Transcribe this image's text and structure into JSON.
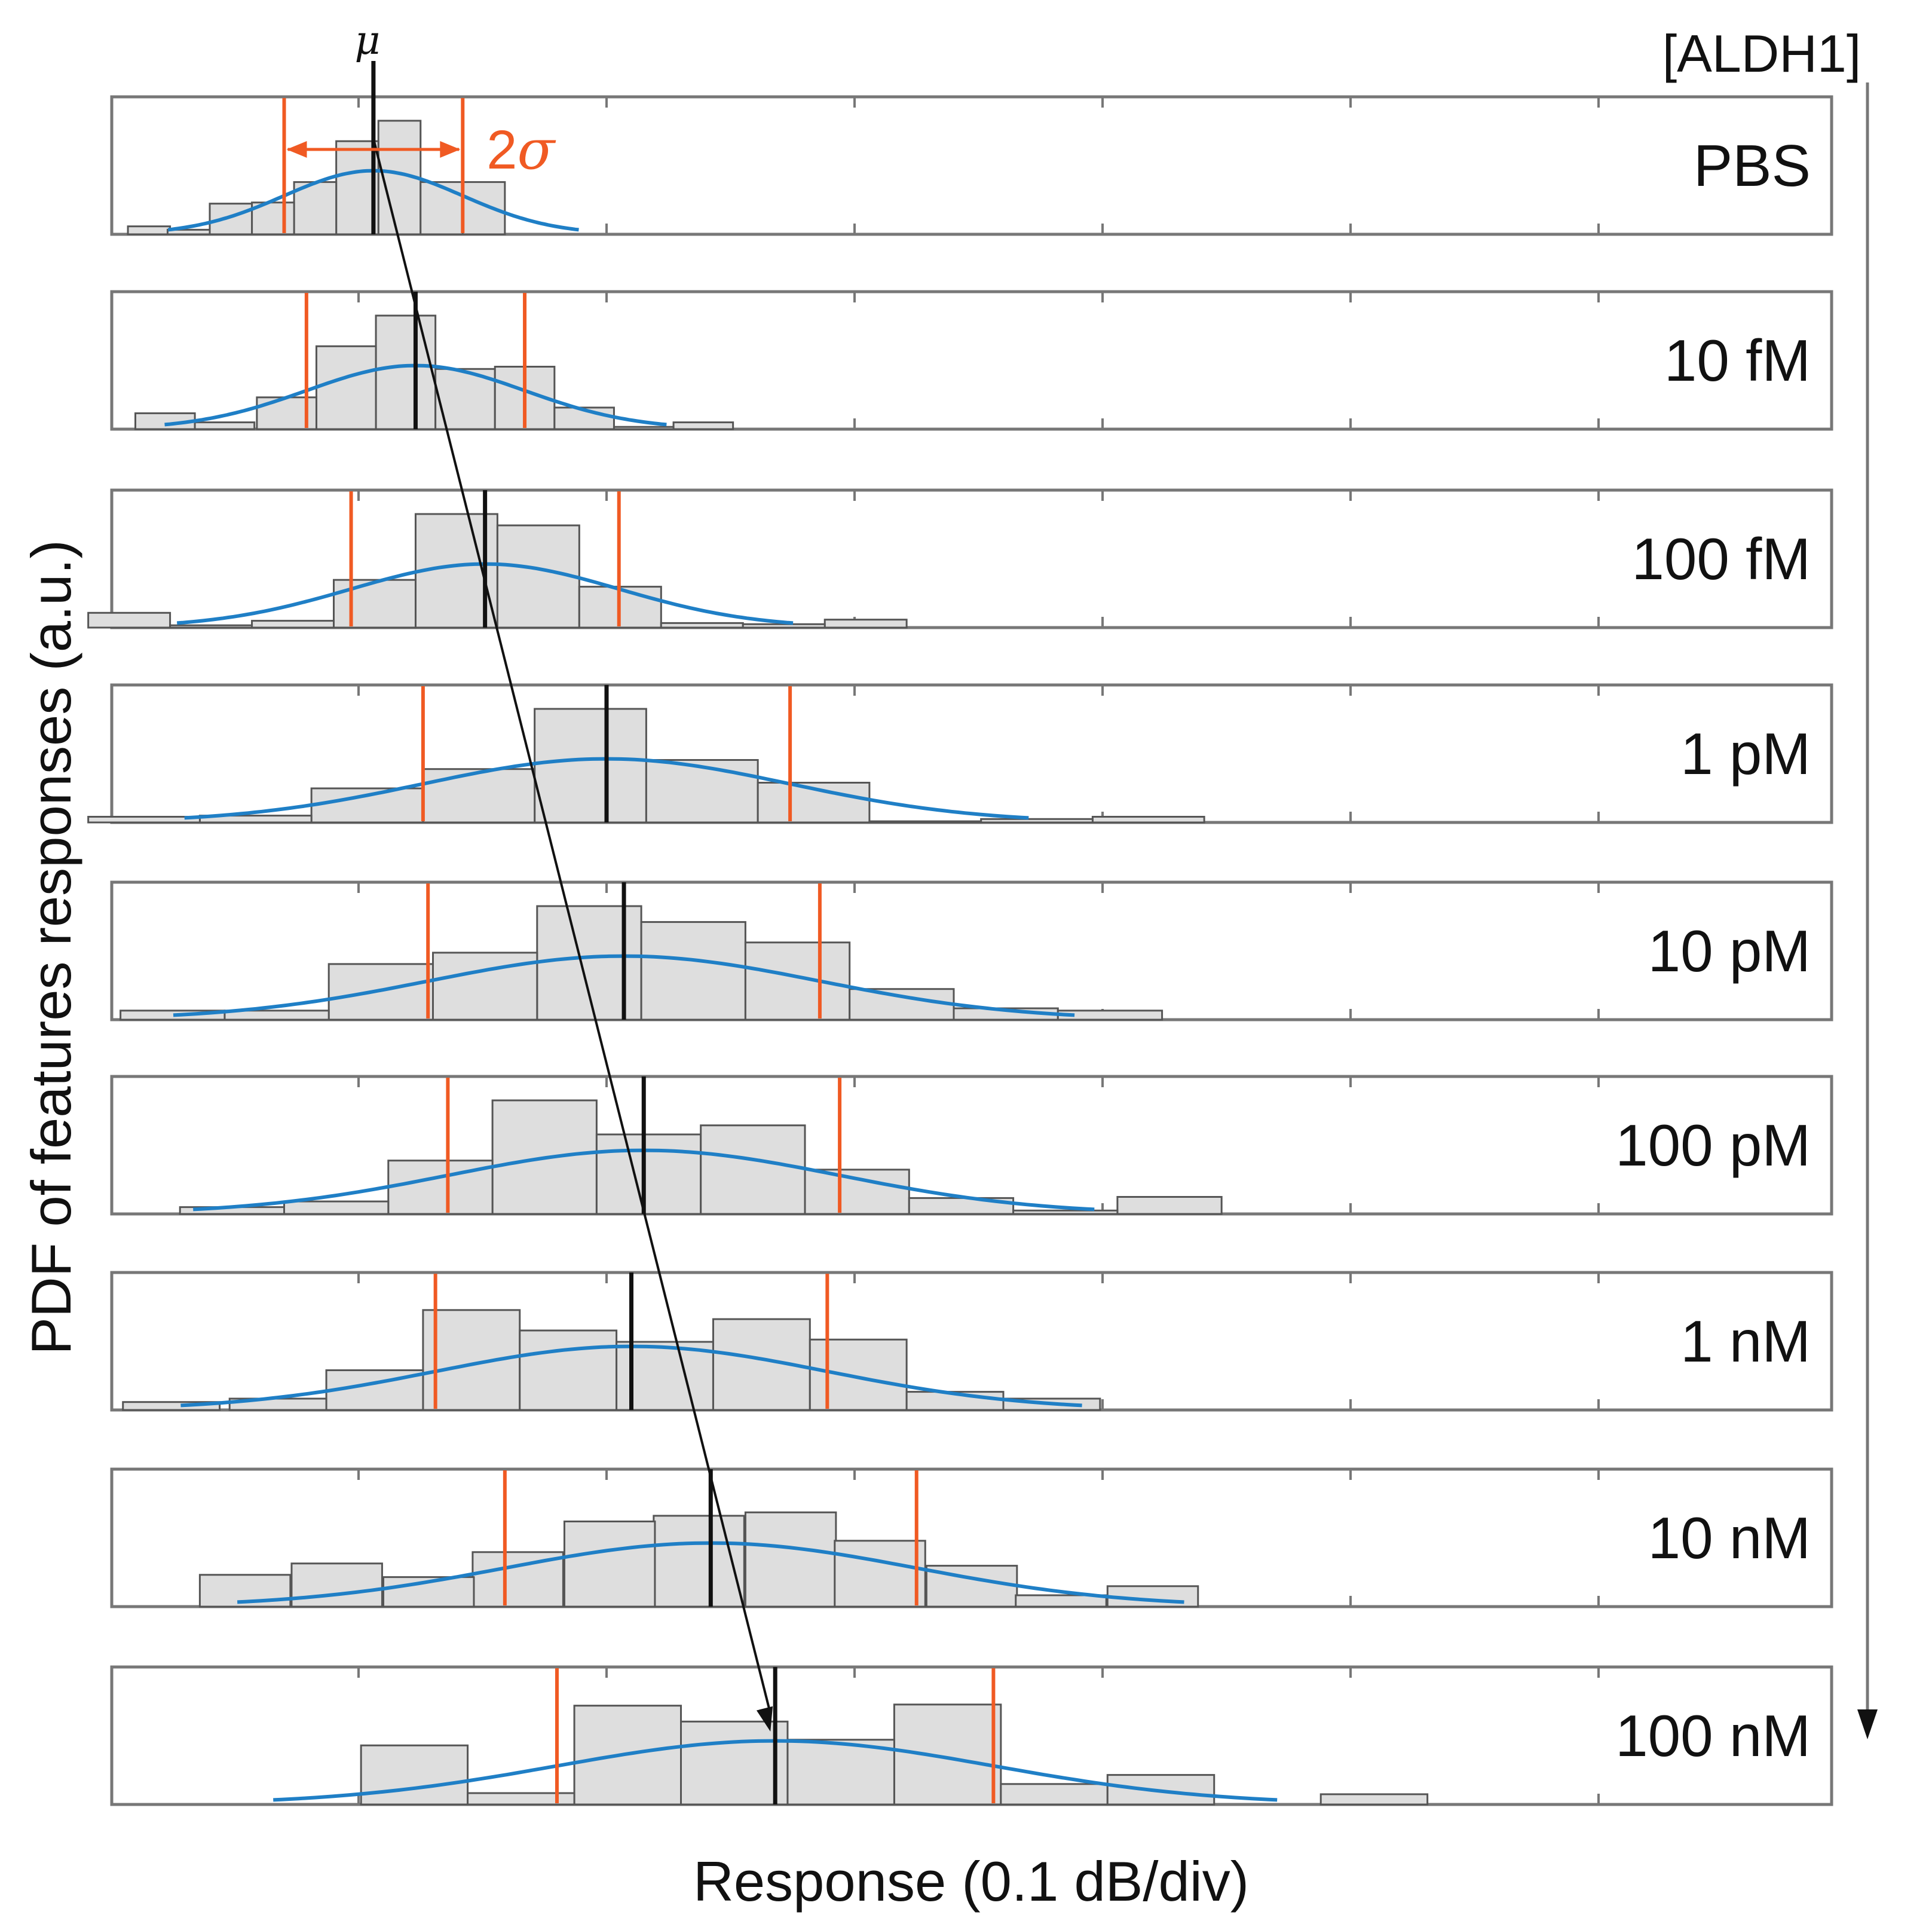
{
  "chart_data": {
    "type": "histogram-stack",
    "xlabel": "Response (0.1 dB/div)",
    "ylabel": "PDF of features responses (a.u.)",
    "axis_label": "[ALDH1]",
    "annotations": {
      "mu": "μ",
      "two_sigma": "2σ",
      "two_prefix": "2",
      "sigma_symbol": "σ"
    },
    "x_units": "div",
    "xlim": [
      -1,
      6
    ],
    "xticks": [
      0,
      1,
      2,
      3,
      4,
      5
    ],
    "colors": {
      "hist_fill": "#dedede",
      "hist_edge": "#555555",
      "fit": "#1f7fc6",
      "sigma": "#f05a23",
      "mean": "#111111",
      "frame": "#777777",
      "trend": "#111111"
    },
    "panels": [
      {
        "label": "PBS",
        "mean": 0.06,
        "sigma": 0.36,
        "bin_width": 0.17,
        "bins": [
          {
            "start": 0.08,
            "height": 1.0
          },
          {
            "start": -0.09,
            "height": 0.82
          },
          {
            "start": 0.25,
            "height": 0.46
          },
          {
            "start": -0.26,
            "height": 0.46
          },
          {
            "start": 0.42,
            "height": 0.46
          },
          {
            "start": -0.43,
            "height": 0.28
          },
          {
            "start": -0.6,
            "height": 0.27
          },
          {
            "start": -0.93,
            "height": 0.07
          },
          {
            "start": -0.77,
            "height": 0.04
          }
        ]
      },
      {
        "label": "10 fM",
        "mean": 0.23,
        "sigma": 0.44,
        "bin_width": 0.24,
        "bins": [
          {
            "start": 0.07,
            "height": 1.0
          },
          {
            "start": -0.17,
            "height": 0.73
          },
          {
            "start": 0.31,
            "height": 0.53
          },
          {
            "start": 0.55,
            "height": 0.55
          },
          {
            "start": -0.41,
            "height": 0.28
          },
          {
            "start": 0.79,
            "height": 0.19
          },
          {
            "start": -0.9,
            "height": 0.14
          },
          {
            "start": -0.66,
            "height": 0.06
          },
          {
            "start": 1.27,
            "height": 0.06
          },
          {
            "start": 1.03,
            "height": 0.02
          }
        ]
      },
      {
        "label": "100 fM",
        "mean": 0.51,
        "sigma": 0.54,
        "bin_width": 0.33,
        "bins": [
          {
            "start": 0.23,
            "height": 1.0
          },
          {
            "start": 0.56,
            "height": 0.9
          },
          {
            "start": -0.1,
            "height": 0.42
          },
          {
            "start": 0.89,
            "height": 0.36
          },
          {
            "start": -1.09,
            "height": 0.13
          },
          {
            "start": 1.88,
            "height": 0.07
          },
          {
            "start": 1.22,
            "height": 0.04
          },
          {
            "start": -0.43,
            "height": 0.06
          },
          {
            "start": -0.76,
            "height": 0.02
          },
          {
            "start": 1.55,
            "height": 0.03
          }
        ]
      },
      {
        "label": "1 pM",
        "mean": 1.0,
        "sigma": 0.74,
        "bin_width": 0.45,
        "bins": [
          {
            "start": 0.71,
            "height": 1.0
          },
          {
            "start": 0.26,
            "height": 0.47
          },
          {
            "start": 1.16,
            "height": 0.55
          },
          {
            "start": 1.61,
            "height": 0.35
          },
          {
            "start": -0.19,
            "height": 0.3
          },
          {
            "start": -0.64,
            "height": 0.06
          },
          {
            "start": -1.09,
            "height": 0.05
          },
          {
            "start": 2.96,
            "height": 0.05
          },
          {
            "start": 2.51,
            "height": 0.03
          },
          {
            "start": 2.06,
            "height": 0.01
          }
        ]
      },
      {
        "label": "10 pM",
        "mean": 1.07,
        "sigma": 0.79,
        "bin_width": 0.42,
        "bins": [
          {
            "start": 0.72,
            "height": 1.0
          },
          {
            "start": 1.14,
            "height": 0.86
          },
          {
            "start": 0.3,
            "height": 0.59
          },
          {
            "start": -0.12,
            "height": 0.49
          },
          {
            "start": 1.56,
            "height": 0.68
          },
          {
            "start": 1.98,
            "height": 0.27
          },
          {
            "start": 2.4,
            "height": 0.1
          },
          {
            "start": -0.54,
            "height": 0.08
          },
          {
            "start": -0.96,
            "height": 0.08
          },
          {
            "start": 2.82,
            "height": 0.08
          }
        ]
      },
      {
        "label": "100 pM",
        "mean": 1.15,
        "sigma": 0.79,
        "bin_width": 0.42,
        "bins": [
          {
            "start": 0.54,
            "height": 1.0
          },
          {
            "start": 0.96,
            "height": 0.7
          },
          {
            "start": 1.38,
            "height": 0.78
          },
          {
            "start": 0.12,
            "height": 0.47
          },
          {
            "start": 1.8,
            "height": 0.39
          },
          {
            "start": 2.22,
            "height": 0.14
          },
          {
            "start": -0.3,
            "height": 0.11
          },
          {
            "start": 3.06,
            "height": 0.15
          },
          {
            "start": -0.72,
            "height": 0.06
          },
          {
            "start": 2.64,
            "height": 0.03
          }
        ]
      },
      {
        "label": "1 nM",
        "mean": 1.1,
        "sigma": 0.79,
        "bin_width": 0.39,
        "bins": [
          {
            "start": 0.26,
            "height": 0.88
          },
          {
            "start": 0.65,
            "height": 0.7
          },
          {
            "start": 1.04,
            "height": 0.6
          },
          {
            "start": 1.43,
            "height": 0.8
          },
          {
            "start": 1.82,
            "height": 0.62
          },
          {
            "start": -0.13,
            "height": 0.35
          },
          {
            "start": 2.21,
            "height": 0.16
          },
          {
            "start": -0.52,
            "height": 0.1
          },
          {
            "start": -0.95,
            "height": 0.07
          },
          {
            "start": 2.6,
            "height": 0.1
          }
        ]
      },
      {
        "label": "10 nM",
        "mean": 1.42,
        "sigma": 0.83,
        "bin_width": 0.365,
        "bins": [
          {
            "start": 1.19,
            "height": 0.8
          },
          {
            "start": 1.56,
            "height": 0.83
          },
          {
            "start": 0.83,
            "height": 0.75
          },
          {
            "start": 1.92,
            "height": 0.58
          },
          {
            "start": 0.46,
            "height": 0.48
          },
          {
            "start": 2.29,
            "height": 0.36
          },
          {
            "start": -0.27,
            "height": 0.38
          },
          {
            "start": 0.1,
            "height": 0.26
          },
          {
            "start": -0.64,
            "height": 0.28
          },
          {
            "start": 2.65,
            "height": 0.1
          },
          {
            "start": 3.02,
            "height": 0.18
          }
        ]
      },
      {
        "label": "100 nM",
        "mean": 1.68,
        "sigma": 0.88,
        "bin_width": 0.43,
        "bins": [
          {
            "start": 0.87,
            "height": 0.87
          },
          {
            "start": 2.16,
            "height": 0.88
          },
          {
            "start": 1.3,
            "height": 0.73
          },
          {
            "start": 1.73,
            "height": 0.57
          },
          {
            "start": 0.01,
            "height": 0.52
          },
          {
            "start": 2.59,
            "height": 0.18
          },
          {
            "start": 3.02,
            "height": 0.26
          },
          {
            "start": 0.44,
            "height": 0.1
          },
          {
            "start": 3.88,
            "height": 0.09
          }
        ]
      }
    ]
  }
}
